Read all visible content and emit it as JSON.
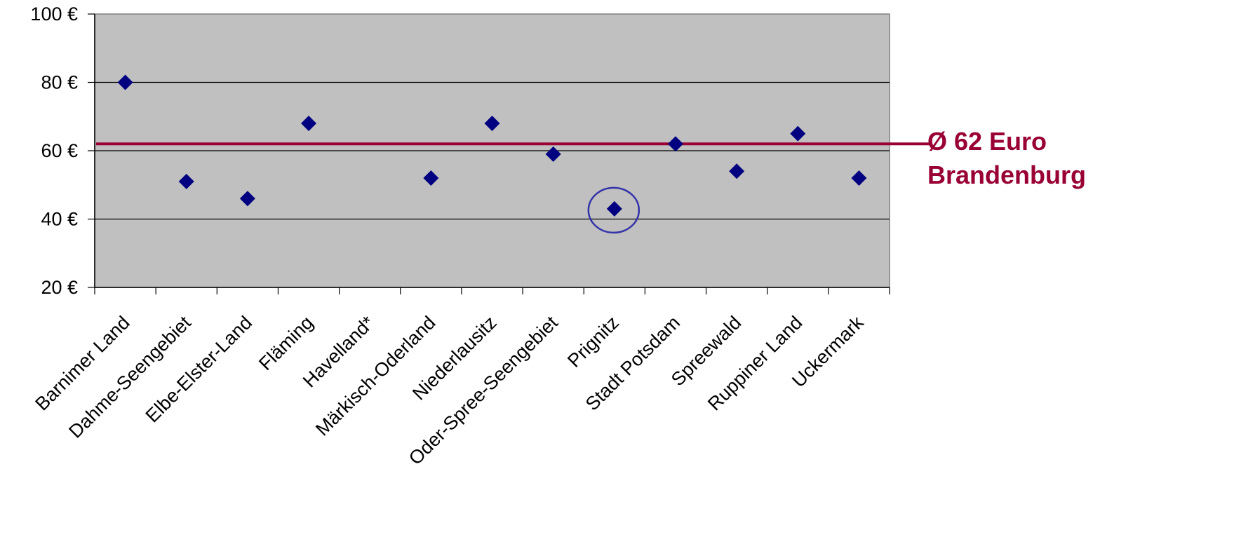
{
  "chart_data": {
    "type": "scatter",
    "categories": [
      "Barnimer Land",
      "Dahme-Seengebiet",
      "Elbe-Elster-Land",
      "Fläming",
      "Havelland*",
      "Märkisch-Oderland",
      "Niederlausitz",
      "Oder-Spree-Seengebiet",
      "Prignitz",
      "Stadt Potsdam",
      "Spreewald",
      "Ruppiner Land",
      "Uckermark"
    ],
    "series": [
      {
        "values": [
          80,
          51,
          46,
          68,
          null,
          52,
          68,
          59,
          43,
          62,
          54,
          65,
          52
        ]
      }
    ],
    "ylim": [
      20,
      100
    ],
    "yticks": [
      "20 €",
      "40 €",
      "60 €",
      "80 €",
      "100 €"
    ],
    "ytick_values": [
      20,
      40,
      60,
      80,
      100
    ],
    "grid": true,
    "reference_line": {
      "value": 62,
      "label_line1": "Ø 62 Euro",
      "label_line2": "Brandenburg"
    },
    "highlighted_category": "Prignitz",
    "colors": {
      "plot_bg": "#c0c0c0",
      "marker": "#000080",
      "reference": "#990033",
      "highlight": "#3333aa"
    }
  }
}
